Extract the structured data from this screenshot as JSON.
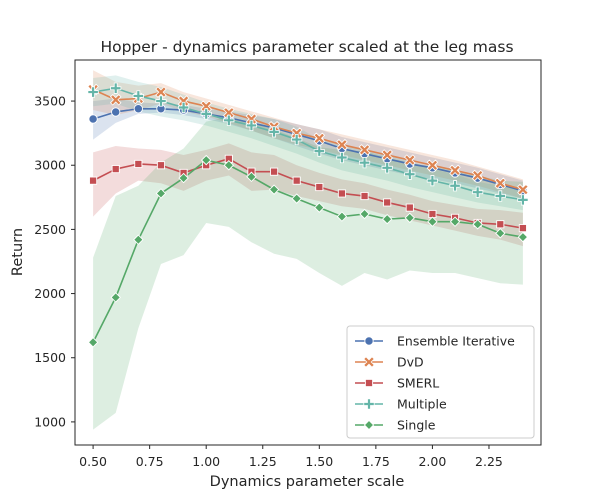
{
  "chart_data": {
    "type": "line",
    "title": "Hopper - dynamics parameter scaled at the leg mass",
    "xlabel": "Dynamics parameter scale",
    "ylabel": "Return",
    "xlim": [
      0.42,
      2.48
    ],
    "ylim": [
      820,
      3820
    ],
    "xticks": [
      0.5,
      0.75,
      1.0,
      1.25,
      1.5,
      1.75,
      2.0,
      2.25
    ],
    "xtick_labels": [
      "0.50",
      "0.75",
      "1.00",
      "1.25",
      "1.50",
      "1.75",
      "2.00",
      "2.25"
    ],
    "yticks": [
      1000,
      1500,
      2000,
      2500,
      3000,
      3500
    ],
    "ytick_labels": [
      "1000",
      "1500",
      "2000",
      "2500",
      "3000",
      "3500"
    ],
    "grid": false,
    "legend_position": "lower-right",
    "x": [
      0.5,
      0.6,
      0.7,
      0.8,
      0.9,
      1.0,
      1.1,
      1.2,
      1.3,
      1.4,
      1.5,
      1.6,
      1.7,
      1.8,
      1.9,
      2.0,
      2.1,
      2.2,
      2.3,
      2.4
    ],
    "series": [
      {
        "name": "Ensemble Iterative",
        "color": "#4c72b0",
        "marker": "circle",
        "values": [
          3360,
          3415,
          3440,
          3440,
          3430,
          3400,
          3370,
          3330,
          3290,
          3240,
          3190,
          3130,
          3090,
          3050,
          3010,
          2980,
          2940,
          2900,
          2850,
          2800
        ],
        "lower": [
          3200,
          3330,
          3400,
          3410,
          3390,
          3360,
          3320,
          3270,
          3210,
          3150,
          3090,
          3040,
          3000,
          2960,
          2920,
          2890,
          2860,
          2820,
          2780,
          2740
        ],
        "upper": [
          3500,
          3520,
          3490,
          3480,
          3470,
          3440,
          3420,
          3390,
          3360,
          3320,
          3280,
          3220,
          3180,
          3140,
          3100,
          3060,
          3020,
          2980,
          2930,
          2880
        ]
      },
      {
        "name": "DvD",
        "color": "#dd8452",
        "marker": "x",
        "values": [
          3590,
          3510,
          3520,
          3570,
          3500,
          3460,
          3410,
          3360,
          3300,
          3250,
          3210,
          3160,
          3120,
          3080,
          3040,
          3000,
          2960,
          2920,
          2860,
          2810
        ],
        "lower": [
          3430,
          3390,
          3430,
          3480,
          3420,
          3380,
          3330,
          3270,
          3210,
          3160,
          3120,
          3080,
          3040,
          3000,
          2960,
          2920,
          2880,
          2840,
          2790,
          2740
        ],
        "upper": [
          3740,
          3650,
          3620,
          3640,
          3570,
          3520,
          3470,
          3420,
          3370,
          3320,
          3280,
          3240,
          3200,
          3160,
          3120,
          3080,
          3040,
          2990,
          2940,
          2890
        ]
      },
      {
        "name": "SMERL",
        "color": "#c44e52",
        "marker": "square",
        "values": [
          2880,
          2970,
          3010,
          3000,
          2940,
          3000,
          3050,
          2950,
          2950,
          2880,
          2830,
          2780,
          2760,
          2710,
          2670,
          2620,
          2590,
          2550,
          2540,
          2510
        ],
        "lower": [
          2600,
          2780,
          2880,
          2860,
          2800,
          2880,
          2920,
          2800,
          2810,
          2760,
          2720,
          2680,
          2660,
          2610,
          2570,
          2530,
          2490,
          2450,
          2420,
          2370
        ],
        "upper": [
          3100,
          3150,
          3130,
          3120,
          3080,
          3120,
          3170,
          3100,
          3080,
          3000,
          2940,
          2890,
          2860,
          2810,
          2770,
          2720,
          2690,
          2660,
          2650,
          2630
        ]
      },
      {
        "name": "Multiple",
        "color": "#64b5a8",
        "marker": "plus",
        "values": [
          3570,
          3600,
          3540,
          3500,
          3450,
          3400,
          3350,
          3310,
          3260,
          3200,
          3110,
          3060,
          3020,
          2980,
          2930,
          2880,
          2840,
          2790,
          2760,
          2730
        ],
        "lower": [
          3460,
          3480,
          3420,
          3380,
          3350,
          3310,
          3260,
          3210,
          3150,
          3090,
          3020,
          2960,
          2920,
          2880,
          2830,
          2790,
          2750,
          2710,
          2680,
          2650
        ],
        "upper": [
          3680,
          3700,
          3650,
          3610,
          3550,
          3490,
          3440,
          3400,
          3360,
          3300,
          3200,
          3160,
          3120,
          3080,
          3030,
          2970,
          2930,
          2870,
          2840,
          2810
        ]
      },
      {
        "name": "Single",
        "color": "#55a868",
        "marker": "diamond",
        "values": [
          1620,
          1970,
          2420,
          2780,
          2900,
          3040,
          3000,
          2910,
          2810,
          2740,
          2670,
          2600,
          2620,
          2580,
          2590,
          2560,
          2560,
          2540,
          2470,
          2440
        ],
        "lower": [
          940,
          1070,
          1730,
          2230,
          2300,
          2550,
          2520,
          2400,
          2310,
          2270,
          2160,
          2060,
          2160,
          2110,
          2180,
          2160,
          2160,
          2120,
          2080,
          2070
        ],
        "upper": [
          2280,
          2760,
          2840,
          3020,
          3130,
          3340,
          3380,
          3330,
          3280,
          3210,
          3140,
          3120,
          3110,
          3060,
          3020,
          2990,
          2960,
          2920,
          2880,
          2870
        ]
      }
    ]
  }
}
